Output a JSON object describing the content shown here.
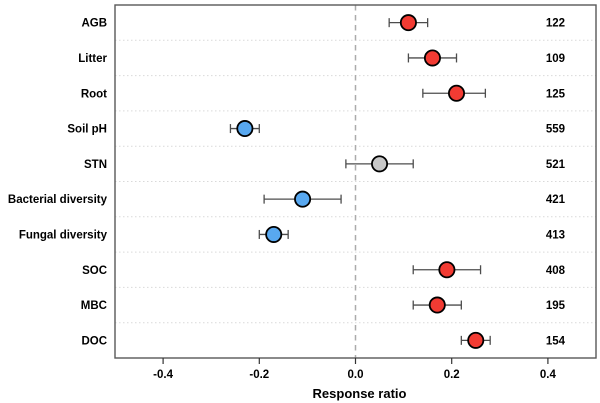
{
  "chart_data": {
    "type": "scatter",
    "subtype": "forest-plot-dot-whisker",
    "title": "",
    "xlabel": "Response ratio",
    "ylabel": "",
    "xlim": [
      -0.5,
      0.5
    ],
    "xticks": [
      -0.4,
      -0.2,
      0.0,
      0.2,
      0.4
    ],
    "xtick_labels": [
      "-0.4",
      "-0.2",
      "0.0",
      "0.2",
      "0.4"
    ],
    "zero_line": 0,
    "grid": "dotted-horizontal-row-separators",
    "legend_position": "none",
    "categories": [
      "AGB",
      "Litter",
      "Root",
      "Soil pH",
      "STN",
      "Bacterial diversity",
      "Fungal diversity",
      "SOC",
      "MBC",
      "DOC"
    ],
    "points": [
      {
        "label": "AGB",
        "mean": 0.11,
        "ci_low": 0.07,
        "ci_high": 0.15,
        "n": 122,
        "color": "#f23b33"
      },
      {
        "label": "Litter",
        "mean": 0.16,
        "ci_low": 0.11,
        "ci_high": 0.21,
        "n": 109,
        "color": "#f23b33"
      },
      {
        "label": "Root",
        "mean": 0.21,
        "ci_low": 0.14,
        "ci_high": 0.27,
        "n": 125,
        "color": "#f23b33"
      },
      {
        "label": "Soil pH",
        "mean": -0.23,
        "ci_low": -0.26,
        "ci_high": -0.2,
        "n": 559,
        "color": "#58a8f0"
      },
      {
        "label": "STN",
        "mean": 0.05,
        "ci_low": -0.02,
        "ci_high": 0.12,
        "n": 521,
        "color": "#c8c8c8"
      },
      {
        "label": "Bacterial diversity",
        "mean": -0.11,
        "ci_low": -0.19,
        "ci_high": -0.03,
        "n": 421,
        "color": "#58a8f0"
      },
      {
        "label": "Fungal diversity",
        "mean": -0.17,
        "ci_low": -0.2,
        "ci_high": -0.14,
        "n": 413,
        "color": "#58a8f0"
      },
      {
        "label": "SOC",
        "mean": 0.19,
        "ci_low": 0.12,
        "ci_high": 0.26,
        "n": 408,
        "color": "#f23b33"
      },
      {
        "label": "MBC",
        "mean": 0.17,
        "ci_low": 0.12,
        "ci_high": 0.22,
        "n": 195,
        "color": "#f23b33"
      },
      {
        "label": "DOC",
        "mean": 0.25,
        "ci_low": 0.22,
        "ci_high": 0.28,
        "n": 154,
        "color": "#f23b33"
      }
    ],
    "colors": {
      "positive_point": "#f23b33",
      "negative_point": "#58a8f0",
      "neutral_point": "#c8c8c8",
      "point_outline": "#000000",
      "error_bar": "#4d4d4d",
      "plot_border": "#595959",
      "gridline": "#d9d9d9",
      "zero_dash_line": "#ababab",
      "background": "#ffffff"
    }
  }
}
